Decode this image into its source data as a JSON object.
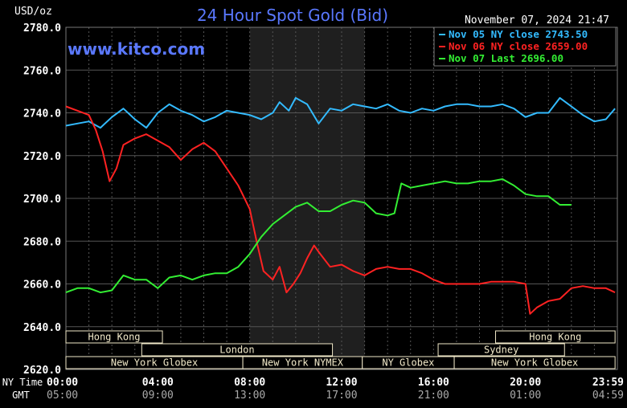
{
  "chart_data": {
    "type": "line",
    "title": "24 Hour Spot Gold (Bid)",
    "ylabel": "USD/oz",
    "timestamp": "November 07, 2024 21:47",
    "watermark": "www.kitco.com",
    "ylim": [
      2620,
      2780
    ],
    "y_ticks": [
      "2780.0",
      "2760.0",
      "2740.0",
      "2720.0",
      "2700.0",
      "2680.0",
      "2660.0",
      "2640.0",
      "2620.0"
    ],
    "xlim_hours": [
      0,
      24
    ],
    "grid": true,
    "legend_position": "top-right",
    "x_axis": {
      "row1_label": "NY Time",
      "row2_label": "GMT",
      "ny_ticks": [
        "00:00",
        "04:00",
        "08:00",
        "12:00",
        "16:00",
        "20:00",
        "23:59"
      ],
      "gmt_ticks": [
        "05:00",
        "09:00",
        "13:00",
        "17:00",
        "21:00",
        "01:00",
        "04:59"
      ]
    },
    "shaded_session_hours": [
      8,
      13
    ],
    "sessions": [
      {
        "label": "Hong Kong",
        "start": 0,
        "end": 4.2
      },
      {
        "label": "Hong Kong",
        "start": 18.7,
        "end": 23.9
      },
      {
        "label": "London",
        "start": 3.3,
        "end": 11.6
      },
      {
        "label": "Sydney",
        "start": 16.2,
        "end": 21.7
      },
      {
        "label": "New York Globex",
        "start": 0,
        "end": 7.7
      },
      {
        "label": "New York NYMEX",
        "start": 7.7,
        "end": 12.9
      },
      {
        "label": "NY Globex",
        "start": 12.9,
        "end": 16.9
      },
      {
        "label": "New York Globex",
        "start": 16.9,
        "end": 23.9
      }
    ],
    "series": [
      {
        "name": "Nov 05 NY close 2743.50",
        "color": "#33bbff",
        "x": [
          0,
          0.5,
          1.0,
          1.5,
          2.0,
          2.5,
          3.0,
          3.5,
          4.0,
          4.5,
          5.0,
          5.5,
          6.0,
          6.5,
          7.0,
          7.5,
          8.0,
          8.5,
          9.0,
          9.3,
          9.7,
          10.0,
          10.5,
          11.0,
          11.5,
          12.0,
          12.5,
          13.0,
          13.5,
          14.0,
          14.5,
          15.0,
          15.5,
          16.0,
          16.5,
          17.0,
          17.5,
          18.0,
          18.5,
          19.0,
          19.5,
          20.0,
          20.5,
          21.0,
          21.5,
          22.0,
          22.5,
          23.0,
          23.5,
          23.9
        ],
        "y": [
          2734,
          2735,
          2736,
          2733,
          2738,
          2742,
          2737,
          2733,
          2740,
          2744,
          2741,
          2739,
          2736,
          2738,
          2741,
          2740,
          2739,
          2737,
          2740,
          2745,
          2741,
          2747,
          2744,
          2735,
          2742,
          2741,
          2744,
          2743,
          2742,
          2744,
          2741,
          2740,
          2742,
          2741,
          2743,
          2744,
          2744,
          2743,
          2743,
          2744,
          2742,
          2738,
          2740,
          2740,
          2747,
          2743,
          2739,
          2736,
          2737,
          2742
        ]
      },
      {
        "name": "Nov 06 NY close 2659.00",
        "color": "#ff2222",
        "x": [
          0,
          0.5,
          1.0,
          1.3,
          1.6,
          1.9,
          2.2,
          2.5,
          3.0,
          3.5,
          4.0,
          4.5,
          5.0,
          5.5,
          6.0,
          6.5,
          7.0,
          7.5,
          8.0,
          8.3,
          8.6,
          9.0,
          9.3,
          9.6,
          9.9,
          10.2,
          10.5,
          10.8,
          11.0,
          11.5,
          12.0,
          12.5,
          13.0,
          13.5,
          14.0,
          14.5,
          15.0,
          15.5,
          16.0,
          16.5,
          17.0,
          17.5,
          18.0,
          18.5,
          19.0,
          19.5,
          20.0,
          20.2,
          20.5,
          21.0,
          21.5,
          22.0,
          22.5,
          23.0,
          23.5,
          23.9
        ],
        "y": [
          2743,
          2741,
          2739,
          2732,
          2722,
          2708,
          2714,
          2725,
          2728,
          2730,
          2727,
          2724,
          2718,
          2723,
          2726,
          2722,
          2714,
          2706,
          2695,
          2680,
          2666,
          2662,
          2668,
          2656,
          2660,
          2665,
          2672,
          2678,
          2675,
          2668,
          2669,
          2666,
          2664,
          2667,
          2668,
          2667,
          2667,
          2665,
          2662,
          2660,
          2660,
          2660,
          2660,
          2661,
          2661,
          2661,
          2660,
          2646,
          2649,
          2652,
          2653,
          2658,
          2659,
          2658,
          2658,
          2656
        ]
      },
      {
        "name": "Nov 07 Last 2696.00",
        "color": "#33ee33",
        "x": [
          0,
          0.5,
          1.0,
          1.5,
          2.0,
          2.5,
          3.0,
          3.5,
          4.0,
          4.5,
          5.0,
          5.5,
          6.0,
          6.5,
          7.0,
          7.5,
          8.0,
          8.5,
          9.0,
          9.5,
          10.0,
          10.5,
          11.0,
          11.5,
          12.0,
          12.5,
          13.0,
          13.5,
          14.0,
          14.3,
          14.6,
          15.0,
          15.5,
          16.0,
          16.5,
          17.0,
          17.5,
          18.0,
          18.5,
          19.0,
          19.5,
          20.0,
          20.5,
          21.0,
          21.5,
          22.0
        ],
        "y": [
          2656,
          2658,
          2658,
          2656,
          2657,
          2664,
          2662,
          2662,
          2658,
          2663,
          2664,
          2662,
          2664,
          2665,
          2665,
          2668,
          2674,
          2682,
          2688,
          2692,
          2696,
          2698,
          2694,
          2694,
          2697,
          2699,
          2698,
          2693,
          2692,
          2693,
          2707,
          2705,
          2706,
          2707,
          2708,
          2707,
          2707,
          2708,
          2708,
          2709,
          2706,
          2702,
          2701,
          2701,
          2697,
          2697
        ]
      }
    ]
  }
}
